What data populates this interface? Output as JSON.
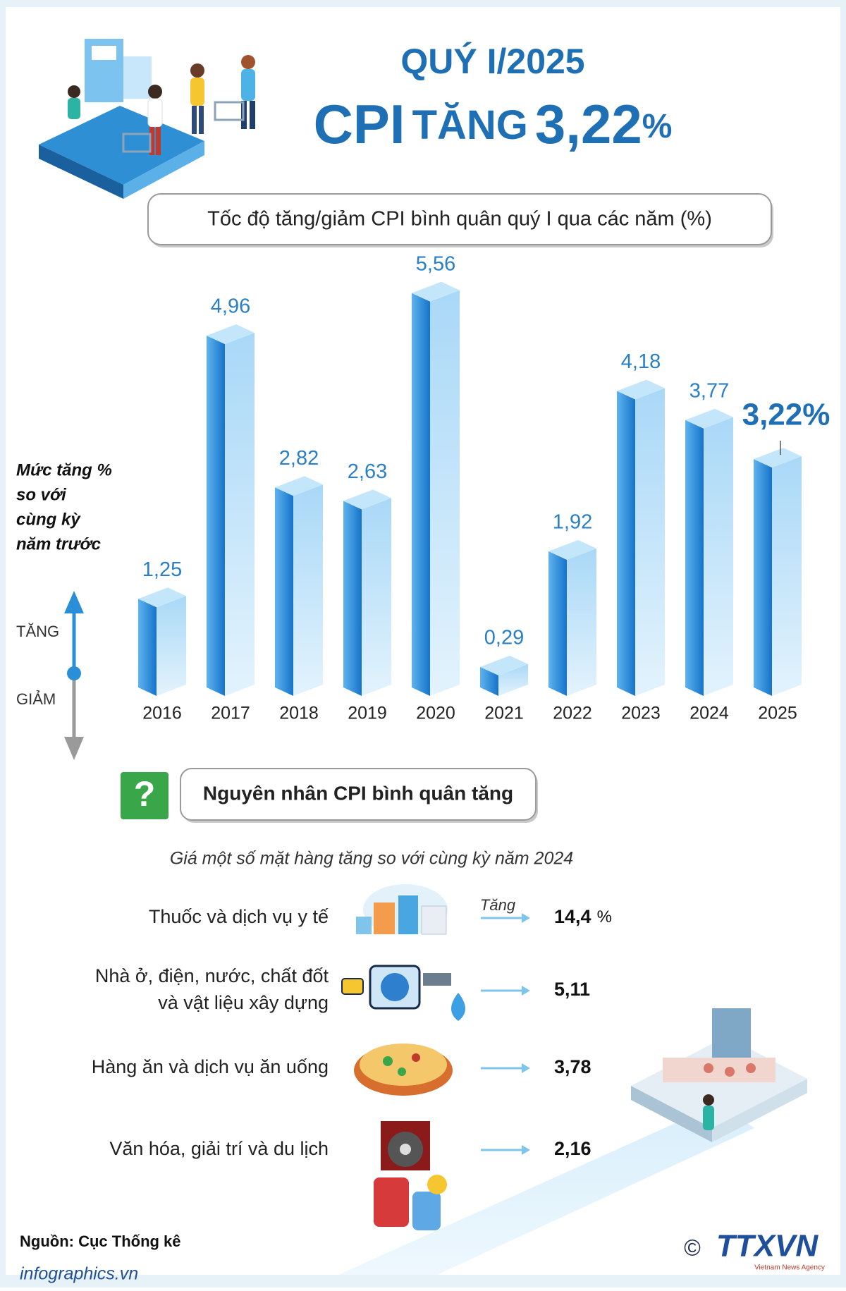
{
  "header": {
    "line1": "QUÝ I/2025",
    "cpi": "CPI",
    "verb": "TĂNG",
    "value": "3,22",
    "unit": "%"
  },
  "chart_data": {
    "type": "bar",
    "title": "Tốc độ tăng/giảm CPI bình quân quý I qua các năm (%)",
    "y_label_lines": [
      "Mức tăng %",
      "so với",
      "cùng kỳ",
      "năm trước"
    ],
    "up_label": "TĂNG",
    "down_label": "GIẢM",
    "categories": [
      "2016",
      "2017",
      "2018",
      "2019",
      "2020",
      "2021",
      "2022",
      "2023",
      "2024",
      "2025"
    ],
    "values": [
      1.25,
      4.96,
      2.82,
      2.63,
      5.56,
      0.29,
      1.92,
      4.18,
      3.77,
      3.22
    ],
    "value_labels": [
      "1,25",
      "4,96",
      "2,82",
      "2,63",
      "5,56",
      "0,29",
      "1,92",
      "4,18",
      "3,77",
      "3,22%"
    ],
    "color": "#1e88d8"
  },
  "reasons": {
    "icon": "?",
    "title": "Nguyên nhân CPI bình quân tăng",
    "subtitle": "Giá một số mặt hàng tăng so với cùng kỳ năm 2024",
    "increase_label": "Tăng",
    "items": [
      {
        "lines": [
          "Thuốc và dịch vụ y tế"
        ],
        "value": "14,4",
        "unit": "%"
      },
      {
        "lines": [
          "Nhà ở, điện, nước, chất đốt",
          "và vật liệu xây dựng"
        ],
        "value": "5,11"
      },
      {
        "lines": [
          "Hàng ăn và dịch vụ ăn uống"
        ],
        "value": "3,78"
      },
      {
        "lines": [
          "Văn hóa, giải trí và du lịch"
        ],
        "value": "2,16"
      }
    ]
  },
  "source": "Nguồn: Cục Thống kê",
  "footer": "infographics.vn",
  "logo": {
    "copyright": "©",
    "name": "TTXVN",
    "tagline": "Vietnam News Agency"
  }
}
